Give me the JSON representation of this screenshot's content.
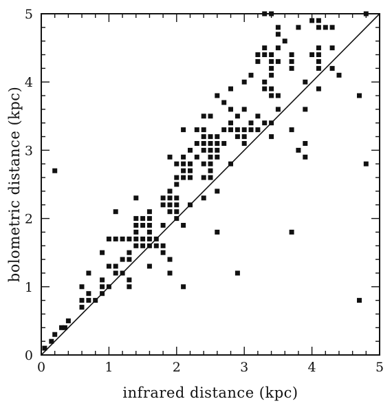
{
  "chart_data": {
    "type": "scatter",
    "title": "",
    "xlabel": "infrared distance (kpc)",
    "ylabel": "bolometric distance (kpc)",
    "xlim": [
      0,
      5
    ],
    "ylim": [
      0,
      5
    ],
    "x_ticks": [
      "0",
      "1",
      "2",
      "3",
      "4",
      "5"
    ],
    "y_ticks": [
      "0",
      "1",
      "2",
      "3",
      "4",
      "5"
    ],
    "grid": false,
    "reference_line": {
      "from": [
        0,
        0
      ],
      "to": [
        5,
        5
      ]
    },
    "marker_color": "#111111",
    "series": [
      {
        "points": [
          [
            0.05,
            0.1
          ],
          [
            0.15,
            0.2
          ],
          [
            0.2,
            0.3
          ],
          [
            0.3,
            0.4
          ],
          [
            0.35,
            0.4
          ],
          [
            0.4,
            0.5
          ],
          [
            0.2,
            2.7
          ],
          [
            0.6,
            0.7
          ],
          [
            0.6,
            0.8
          ],
          [
            0.6,
            1.0
          ],
          [
            0.7,
            0.8
          ],
          [
            0.7,
            0.9
          ],
          [
            0.7,
            1.2
          ],
          [
            0.8,
            0.8
          ],
          [
            0.9,
            0.9
          ],
          [
            0.9,
            1.0
          ],
          [
            0.9,
            1.1
          ],
          [
            0.9,
            1.5
          ],
          [
            1.0,
            1.0
          ],
          [
            1.0,
            1.3
          ],
          [
            1.0,
            1.7
          ],
          [
            1.1,
            1.2
          ],
          [
            1.1,
            1.3
          ],
          [
            1.1,
            1.7
          ],
          [
            1.1,
            2.1
          ],
          [
            1.2,
            1.2
          ],
          [
            1.2,
            1.4
          ],
          [
            1.2,
            1.7
          ],
          [
            1.3,
            1.0
          ],
          [
            1.3,
            1.1
          ],
          [
            1.3,
            1.4
          ],
          [
            1.3,
            1.5
          ],
          [
            1.3,
            1.7
          ],
          [
            1.4,
            1.6
          ],
          [
            1.4,
            1.7
          ],
          [
            1.4,
            1.8
          ],
          [
            1.4,
            1.9
          ],
          [
            1.4,
            2.0
          ],
          [
            1.4,
            2.3
          ],
          [
            1.5,
            1.6
          ],
          [
            1.5,
            1.7
          ],
          [
            1.5,
            1.9
          ],
          [
            1.5,
            2.0
          ],
          [
            1.6,
            1.3
          ],
          [
            1.6,
            1.6
          ],
          [
            1.6,
            1.7
          ],
          [
            1.6,
            1.8
          ],
          [
            1.6,
            1.9
          ],
          [
            1.6,
            2.0
          ],
          [
            1.6,
            2.1
          ],
          [
            1.7,
            1.6
          ],
          [
            1.7,
            1.7
          ],
          [
            1.8,
            1.5
          ],
          [
            1.8,
            1.6
          ],
          [
            1.8,
            1.9
          ],
          [
            1.8,
            2.2
          ],
          [
            1.8,
            2.3
          ],
          [
            1.9,
            1.2
          ],
          [
            1.9,
            1.4
          ],
          [
            1.9,
            2.1
          ],
          [
            1.9,
            2.2
          ],
          [
            1.9,
            2.3
          ],
          [
            1.9,
            2.4
          ],
          [
            1.9,
            2.9
          ],
          [
            2.0,
            2.0
          ],
          [
            2.0,
            2.1
          ],
          [
            2.0,
            2.2
          ],
          [
            2.0,
            2.3
          ],
          [
            2.0,
            2.5
          ],
          [
            2.0,
            2.6
          ],
          [
            2.0,
            2.8
          ],
          [
            2.1,
            1.0
          ],
          [
            2.1,
            1.9
          ],
          [
            2.1,
            2.6
          ],
          [
            2.1,
            2.7
          ],
          [
            2.1,
            2.8
          ],
          [
            2.1,
            2.9
          ],
          [
            2.1,
            3.3
          ],
          [
            2.2,
            2.2
          ],
          [
            2.2,
            2.6
          ],
          [
            2.2,
            2.7
          ],
          [
            2.2,
            2.8
          ],
          [
            2.2,
            3.0
          ],
          [
            2.3,
            2.9
          ],
          [
            2.3,
            3.1
          ],
          [
            2.3,
            3.3
          ],
          [
            2.4,
            2.3
          ],
          [
            2.4,
            2.6
          ],
          [
            2.4,
            2.8
          ],
          [
            2.4,
            3.0
          ],
          [
            2.4,
            3.1
          ],
          [
            2.4,
            3.2
          ],
          [
            2.4,
            3.3
          ],
          [
            2.4,
            3.5
          ],
          [
            2.5,
            2.6
          ],
          [
            2.5,
            2.7
          ],
          [
            2.5,
            2.8
          ],
          [
            2.5,
            2.9
          ],
          [
            2.5,
            3.0
          ],
          [
            2.5,
            3.1
          ],
          [
            2.5,
            3.2
          ],
          [
            2.5,
            3.5
          ],
          [
            2.6,
            1.8
          ],
          [
            2.6,
            2.4
          ],
          [
            2.6,
            2.9
          ],
          [
            2.6,
            3.0
          ],
          [
            2.6,
            3.1
          ],
          [
            2.6,
            3.2
          ],
          [
            2.6,
            3.8
          ],
          [
            2.7,
            3.1
          ],
          [
            2.7,
            3.3
          ],
          [
            2.7,
            3.7
          ],
          [
            2.8,
            2.8
          ],
          [
            2.8,
            3.3
          ],
          [
            2.8,
            3.4
          ],
          [
            2.8,
            3.6
          ],
          [
            2.8,
            3.9
          ],
          [
            2.9,
            1.2
          ],
          [
            2.9,
            3.2
          ],
          [
            2.9,
            3.3
          ],
          [
            2.9,
            3.5
          ],
          [
            3.0,
            3.1
          ],
          [
            3.0,
            3.2
          ],
          [
            3.0,
            3.3
          ],
          [
            3.0,
            3.6
          ],
          [
            3.0,
            4.0
          ],
          [
            3.1,
            3.3
          ],
          [
            3.1,
            3.4
          ],
          [
            3.1,
            4.1
          ],
          [
            3.2,
            3.3
          ],
          [
            3.2,
            3.5
          ],
          [
            3.2,
            4.3
          ],
          [
            3.2,
            4.4
          ],
          [
            3.3,
            3.4
          ],
          [
            3.3,
            3.9
          ],
          [
            3.3,
            4.0
          ],
          [
            3.3,
            4.4
          ],
          [
            3.3,
            4.5
          ],
          [
            3.3,
            5.0
          ],
          [
            3.4,
            3.2
          ],
          [
            3.4,
            3.4
          ],
          [
            3.4,
            3.8
          ],
          [
            3.4,
            3.9
          ],
          [
            3.4,
            4.1
          ],
          [
            3.4,
            4.2
          ],
          [
            3.4,
            4.3
          ],
          [
            3.4,
            4.4
          ],
          [
            3.4,
            5.0
          ],
          [
            3.5,
            3.6
          ],
          [
            3.5,
            3.8
          ],
          [
            3.5,
            4.3
          ],
          [
            3.5,
            4.5
          ],
          [
            3.5,
            4.7
          ],
          [
            3.5,
            4.8
          ],
          [
            3.6,
            4.6
          ],
          [
            3.7,
            1.8
          ],
          [
            3.7,
            3.3
          ],
          [
            3.7,
            4.2
          ],
          [
            3.7,
            4.3
          ],
          [
            3.7,
            4.4
          ],
          [
            3.8,
            3.0
          ],
          [
            3.8,
            4.8
          ],
          [
            3.9,
            2.9
          ],
          [
            3.9,
            3.1
          ],
          [
            3.9,
            3.6
          ],
          [
            3.9,
            4.0
          ],
          [
            4.0,
            4.4
          ],
          [
            4.0,
            4.9
          ],
          [
            4.1,
            3.9
          ],
          [
            4.1,
            4.2
          ],
          [
            4.1,
            4.3
          ],
          [
            4.1,
            4.4
          ],
          [
            4.1,
            4.5
          ],
          [
            4.1,
            4.8
          ],
          [
            4.1,
            4.9
          ],
          [
            4.2,
            4.8
          ],
          [
            4.3,
            4.2
          ],
          [
            4.3,
            4.5
          ],
          [
            4.3,
            4.8
          ],
          [
            4.4,
            4.1
          ],
          [
            4.7,
            0.8
          ],
          [
            4.7,
            3.8
          ],
          [
            4.8,
            2.8
          ],
          [
            4.8,
            5.0
          ]
        ]
      }
    ]
  }
}
